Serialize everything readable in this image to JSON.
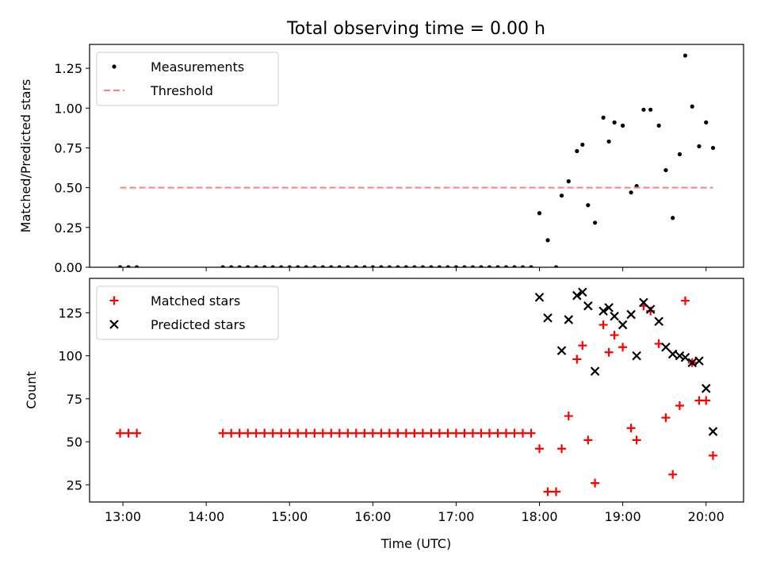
{
  "figure": {
    "title": "Total observing time = 0.00 h",
    "xlabel": "Time (UTC)",
    "x_tick_labels": [
      "13:00",
      "14:00",
      "15:00",
      "16:00",
      "17:00",
      "18:00",
      "19:00",
      "20:00"
    ]
  },
  "chart_data": [
    {
      "type": "scatter",
      "ylabel": "Matched/Predicted stars",
      "xlim": [
        "12:36",
        "20:27"
      ],
      "ylim": [
        0,
        1.4
      ],
      "y_ticks": [
        0.0,
        0.25,
        0.5,
        0.75,
        1.0,
        1.25
      ],
      "y_tick_labels": [
        "0.00",
        "0.25",
        "0.50",
        "0.75",
        "1.00",
        "1.25"
      ],
      "legend": "upper-left",
      "series": [
        {
          "name": "Measurements",
          "color": "#000000",
          "marker": "dot",
          "points": [
            [
              "12:58",
              0.0
            ],
            [
              "13:04",
              0.0
            ],
            [
              "13:10",
              0.0
            ],
            [
              "14:12",
              0.0
            ],
            [
              "14:18",
              0.0
            ],
            [
              "14:24",
              0.0
            ],
            [
              "14:30",
              0.0
            ],
            [
              "14:36",
              0.0
            ],
            [
              "14:42",
              0.0
            ],
            [
              "14:48",
              0.0
            ],
            [
              "14:54",
              0.0
            ],
            [
              "15:00",
              0.0
            ],
            [
              "15:06",
              0.0
            ],
            [
              "15:12",
              0.0
            ],
            [
              "15:18",
              0.0
            ],
            [
              "15:24",
              0.0
            ],
            [
              "15:30",
              0.0
            ],
            [
              "15:36",
              0.0
            ],
            [
              "15:42",
              0.0
            ],
            [
              "15:48",
              0.0
            ],
            [
              "15:54",
              0.0
            ],
            [
              "16:00",
              0.0
            ],
            [
              "16:06",
              0.0
            ],
            [
              "16:12",
              0.0
            ],
            [
              "16:18",
              0.0
            ],
            [
              "16:24",
              0.0
            ],
            [
              "16:30",
              0.0
            ],
            [
              "16:36",
              0.0
            ],
            [
              "16:42",
              0.0
            ],
            [
              "16:48",
              0.0
            ],
            [
              "16:54",
              0.0
            ],
            [
              "17:00",
              0.0
            ],
            [
              "17:06",
              0.0
            ],
            [
              "17:12",
              0.0
            ],
            [
              "17:18",
              0.0
            ],
            [
              "17:24",
              0.0
            ],
            [
              "17:30",
              0.0
            ],
            [
              "17:36",
              0.0
            ],
            [
              "17:42",
              0.0
            ],
            [
              "17:48",
              0.0
            ],
            [
              "17:54",
              0.0
            ],
            [
              "18:00",
              0.34
            ],
            [
              "18:06",
              0.17
            ],
            [
              "18:12",
              0.0
            ],
            [
              "18:16",
              0.45
            ],
            [
              "18:21",
              0.54
            ],
            [
              "18:27",
              0.73
            ],
            [
              "18:31",
              0.77
            ],
            [
              "18:35",
              0.39
            ],
            [
              "18:40",
              0.28
            ],
            [
              "18:46",
              0.94
            ],
            [
              "18:50",
              0.79
            ],
            [
              "18:54",
              0.91
            ],
            [
              "19:00",
              0.89
            ],
            [
              "19:06",
              0.47
            ],
            [
              "19:10",
              0.51
            ],
            [
              "19:15",
              0.99
            ],
            [
              "19:20",
              0.99
            ],
            [
              "19:26",
              0.89
            ],
            [
              "19:31",
              0.61
            ],
            [
              "19:36",
              0.31
            ],
            [
              "19:41",
              0.71
            ],
            [
              "19:45",
              1.33
            ],
            [
              "19:50",
              1.01
            ],
            [
              "19:55",
              0.76
            ],
            [
              "20:00",
              0.91
            ],
            [
              "20:05",
              0.75
            ]
          ]
        },
        {
          "name": "Threshold",
          "color": "#ff7f7f",
          "marker": "dashed-line",
          "points": [
            [
              "12:58",
              0.5
            ],
            [
              "20:05",
              0.5
            ]
          ]
        }
      ]
    },
    {
      "type": "scatter",
      "ylabel": "Count",
      "xlim": [
        "12:36",
        "20:27"
      ],
      "ylim": [
        15,
        145
      ],
      "y_ticks": [
        25,
        50,
        75,
        100,
        125
      ],
      "y_tick_labels": [
        "25",
        "50",
        "75",
        "100",
        "125"
      ],
      "legend": "upper-left",
      "series": [
        {
          "name": "Matched stars",
          "color": "#ff0000",
          "marker": "plus",
          "points": [
            [
              "12:58",
              55
            ],
            [
              "13:04",
              55
            ],
            [
              "13:10",
              55
            ],
            [
              "14:12",
              55
            ],
            [
              "14:18",
              55
            ],
            [
              "14:24",
              55
            ],
            [
              "14:30",
              55
            ],
            [
              "14:36",
              55
            ],
            [
              "14:42",
              55
            ],
            [
              "14:48",
              55
            ],
            [
              "14:54",
              55
            ],
            [
              "15:00",
              55
            ],
            [
              "15:06",
              55
            ],
            [
              "15:12",
              55
            ],
            [
              "15:18",
              55
            ],
            [
              "15:24",
              55
            ],
            [
              "15:30",
              55
            ],
            [
              "15:36",
              55
            ],
            [
              "15:42",
              55
            ],
            [
              "15:48",
              55
            ],
            [
              "15:54",
              55
            ],
            [
              "16:00",
              55
            ],
            [
              "16:06",
              55
            ],
            [
              "16:12",
              55
            ],
            [
              "16:18",
              55
            ],
            [
              "16:24",
              55
            ],
            [
              "16:30",
              55
            ],
            [
              "16:36",
              55
            ],
            [
              "16:42",
              55
            ],
            [
              "16:48",
              55
            ],
            [
              "16:54",
              55
            ],
            [
              "17:00",
              55
            ],
            [
              "17:06",
              55
            ],
            [
              "17:12",
              55
            ],
            [
              "17:18",
              55
            ],
            [
              "17:24",
              55
            ],
            [
              "17:30",
              55
            ],
            [
              "17:36",
              55
            ],
            [
              "17:42",
              55
            ],
            [
              "17:48",
              55
            ],
            [
              "17:54",
              55
            ],
            [
              "18:00",
              46
            ],
            [
              "18:06",
              21
            ],
            [
              "18:12",
              21
            ],
            [
              "18:16",
              46
            ],
            [
              "18:21",
              65
            ],
            [
              "18:27",
              98
            ],
            [
              "18:31",
              106
            ],
            [
              "18:35",
              51
            ],
            [
              "18:40",
              26
            ],
            [
              "18:46",
              118
            ],
            [
              "18:50",
              102
            ],
            [
              "18:54",
              112
            ],
            [
              "19:00",
              105
            ],
            [
              "19:06",
              58
            ],
            [
              "19:10",
              51
            ],
            [
              "19:15",
              129
            ],
            [
              "19:20",
              126
            ],
            [
              "19:26",
              107
            ],
            [
              "19:31",
              64
            ],
            [
              "19:36",
              31
            ],
            [
              "19:41",
              71
            ],
            [
              "19:45",
              132
            ],
            [
              "19:50",
              96
            ],
            [
              "19:55",
              74
            ],
            [
              "20:00",
              74
            ],
            [
              "20:05",
              42
            ]
          ]
        },
        {
          "name": "Predicted stars",
          "color": "#000000",
          "marker": "x",
          "points": [
            [
              "18:00",
              134
            ],
            [
              "18:06",
              122
            ],
            [
              "18:16",
              103
            ],
            [
              "18:21",
              121
            ],
            [
              "18:27",
              135
            ],
            [
              "18:31",
              137
            ],
            [
              "18:35",
              129
            ],
            [
              "18:40",
              91
            ],
            [
              "18:46",
              126
            ],
            [
              "18:50",
              128
            ],
            [
              "18:54",
              123
            ],
            [
              "19:00",
              118
            ],
            [
              "19:06",
              124
            ],
            [
              "19:10",
              100
            ],
            [
              "19:15",
              131
            ],
            [
              "19:20",
              127
            ],
            [
              "19:26",
              120
            ],
            [
              "19:31",
              105
            ],
            [
              "19:36",
              101
            ],
            [
              "19:41",
              100
            ],
            [
              "19:45",
              99
            ],
            [
              "19:50",
              96
            ],
            [
              "19:55",
              97
            ],
            [
              "20:00",
              81
            ],
            [
              "20:05",
              56
            ]
          ]
        }
      ]
    }
  ]
}
